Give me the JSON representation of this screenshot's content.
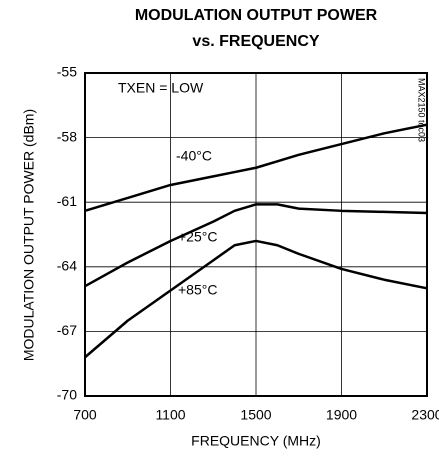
{
  "chart_data": {
    "type": "line",
    "title": [
      "MODULATION OUTPUT POWER",
      "vs. FREQUENCY"
    ],
    "x_label": "FREQUENCY (MHz)",
    "y_label": "MODULATION OUTPUT POWER (dBm)",
    "annotations": [
      "TXEN = LOW",
      "MAX2150 toc03"
    ],
    "x": [
      700,
      900,
      1100,
      1300,
      1400,
      1500,
      1600,
      1700,
      1900,
      2100,
      2300
    ],
    "series": [
      {
        "name": "-40°C",
        "color": "#000000",
        "values": [
          -61.4,
          -60.8,
          -60.2,
          -59.8,
          -59.6,
          -59.4,
          -59.1,
          -58.8,
          -58.3,
          -57.8,
          -57.4
        ]
      },
      {
        "name": "+25°C",
        "color": "#000000",
        "values": [
          -64.9,
          -63.8,
          -62.8,
          -61.9,
          -61.4,
          -61.1,
          -61.1,
          -61.3,
          -61.4,
          -61.45,
          -61.5
        ]
      },
      {
        "name": "+85°C",
        "color": "#000000",
        "values": [
          -68.2,
          -66.5,
          -65.1,
          -63.7,
          -63.0,
          -62.8,
          -63.0,
          -63.4,
          -64.1,
          -64.6,
          -65.0
        ]
      }
    ],
    "xlim": [
      700,
      2300
    ],
    "xticks": [
      700,
      1100,
      1500,
      1900,
      2300
    ],
    "ylim": [
      -70,
      -55
    ],
    "yticks": [
      -70,
      -67,
      -64,
      -61,
      -58,
      -55
    ],
    "grid": true
  }
}
